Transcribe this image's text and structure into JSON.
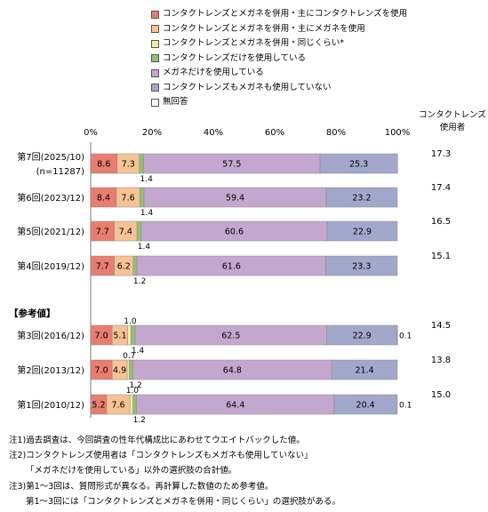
{
  "legend": [
    {
      "label": "コンタクトレンズとメガネを併用・主にコンタクトレンズを使用",
      "color": "#E87D70"
    },
    {
      "label": "コンタクトレンズとメガネを併用・主にメガネを使用",
      "color": "#F7C394"
    },
    {
      "label": "コンタクトレンズとメガネを併用・同じくらい*",
      "color": "#F6E9A8"
    },
    {
      "label": "コンタクトレンズだけを使用している",
      "color": "#93BF7B"
    },
    {
      "label": "メガネだけを使用している",
      "color": "#C4A7CF"
    },
    {
      "label": "コンタクトレンズもメガネも使用していない",
      "color": "#A2A7CC"
    },
    {
      "label": "無回答",
      "color": "#FFFFFF"
    }
  ],
  "side_header": "コンタクトレンズ\n使用者",
  "section_label": "【参考値】",
  "notes": [
    "注1)過去調査は、今回調査の性年代構成比にあわせてウエイトバックした値。",
    "注2)コンタクトレンズ使用者は「コンタクトレンズもメガネも使用していない」",
    "「メガネだけを使用している」以外の選択肢の合計値。",
    "注3)第1～3回は、質問形式が異なる。再計算した数値のため参考値。",
    "第1～3回には「コンタクトレンズとメガネを併用・同じくらい」の選択肢がある。"
  ],
  "chart_data": {
    "type": "bar",
    "orientation": "horizontal",
    "stacked": true,
    "xlim": [
      0,
      100
    ],
    "x_ticks": [
      "0%",
      "20%",
      "40%",
      "60%",
      "80%",
      "100%"
    ],
    "grid": false,
    "categories": [
      {
        "label": "第7回(2025/10)",
        "sub": "(n=11287)"
      },
      {
        "label": "第6回(2023/12)",
        "sub": ""
      },
      {
        "label": "第5回(2021/12)",
        "sub": ""
      },
      {
        "label": "第4回(2019/12)",
        "sub": ""
      },
      {
        "label": "第3回(2016/12)",
        "sub": ""
      },
      {
        "label": "第2回(2013/12)",
        "sub": ""
      },
      {
        "label": "第1回(2010/12)",
        "sub": ""
      }
    ],
    "series": [
      {
        "name": "コンタクトレンズとメガネを併用・主にコンタクトレンズを使用",
        "values": [
          8.6,
          8.4,
          7.7,
          7.7,
          7.0,
          7.0,
          5.2
        ]
      },
      {
        "name": "コンタクトレンズとメガネを併用・主にメガネを使用",
        "values": [
          7.3,
          7.6,
          7.4,
          6.2,
          5.1,
          4.9,
          7.6
        ]
      },
      {
        "name": "コンタクトレンズとメガネを併用・同じくらい*",
        "values": [
          0,
          0,
          0,
          0,
          1.0,
          0.7,
          1.0
        ]
      },
      {
        "name": "コンタクトレンズだけを使用している",
        "values": [
          1.4,
          1.4,
          1.4,
          1.2,
          1.4,
          1.2,
          1.2
        ]
      },
      {
        "name": "メガネだけを使用している",
        "values": [
          57.5,
          59.4,
          60.6,
          61.6,
          62.5,
          64.8,
          64.4
        ]
      },
      {
        "name": "コンタクトレンズもメガネも使用していない",
        "values": [
          25.3,
          23.2,
          22.9,
          23.3,
          22.9,
          21.4,
          20.4
        ]
      },
      {
        "name": "無回答",
        "values": [
          0,
          0,
          0,
          0,
          0.1,
          0,
          0.1
        ]
      }
    ],
    "labels": [
      {
        "inside": [
          "8.6",
          "7.3",
          "",
          "",
          "57.5",
          "25.3",
          ""
        ],
        "below": [
          "",
          "",
          "",
          "1.4",
          "",
          "",
          ""
        ],
        "above": [
          "",
          "",
          "",
          "",
          "",
          "",
          ""
        ],
        "right": ""
      },
      {
        "inside": [
          "8.4",
          "7.6",
          "",
          "",
          "59.4",
          "23.2",
          ""
        ],
        "below": [
          "",
          "",
          "",
          "1.4",
          "",
          "",
          ""
        ],
        "above": [
          "",
          "",
          "",
          "",
          "",
          "",
          ""
        ],
        "right": ""
      },
      {
        "inside": [
          "7.7",
          "7.4",
          "",
          "",
          "60.6",
          "22.9",
          ""
        ],
        "below": [
          "",
          "",
          "",
          "1.4",
          "",
          "",
          ""
        ],
        "above": [
          "",
          "",
          "",
          "",
          "",
          "",
          ""
        ],
        "right": ""
      },
      {
        "inside": [
          "7.7",
          "6.2",
          "",
          "",
          "61.6",
          "23.3",
          ""
        ],
        "below": [
          "",
          "",
          "",
          "1.2",
          "",
          "",
          ""
        ],
        "above": [
          "",
          "",
          "",
          "",
          "",
          "",
          ""
        ],
        "right": ""
      },
      {
        "inside": [
          "7.0",
          "5.1",
          "",
          "",
          "62.5",
          "22.9",
          ""
        ],
        "below": [
          "",
          "",
          "",
          "1.4",
          "",
          "",
          ""
        ],
        "above": [
          "",
          "",
          "1.0",
          "",
          "",
          "",
          ""
        ],
        "right": "0.1"
      },
      {
        "inside": [
          "7.0",
          "4.9",
          "",
          "",
          "64.8",
          "21.4",
          ""
        ],
        "below": [
          "",
          "",
          "",
          "1.2",
          "",
          "",
          ""
        ],
        "above": [
          "",
          "",
          "0.7",
          "",
          "",
          "",
          ""
        ],
        "right": ""
      },
      {
        "inside": [
          "5.2",
          "7.6",
          "",
          "",
          "64.4",
          "20.4",
          ""
        ],
        "below": [
          "",
          "",
          "",
          "1.2",
          "",
          "",
          ""
        ],
        "above": [
          "",
          "",
          "1.0",
          "",
          "",
          "",
          ""
        ],
        "right": "0.1"
      }
    ],
    "contact_users": [
      "17.3",
      "17.4",
      "16.5",
      "15.1",
      "14.5",
      "13.8",
      "15.0"
    ]
  }
}
